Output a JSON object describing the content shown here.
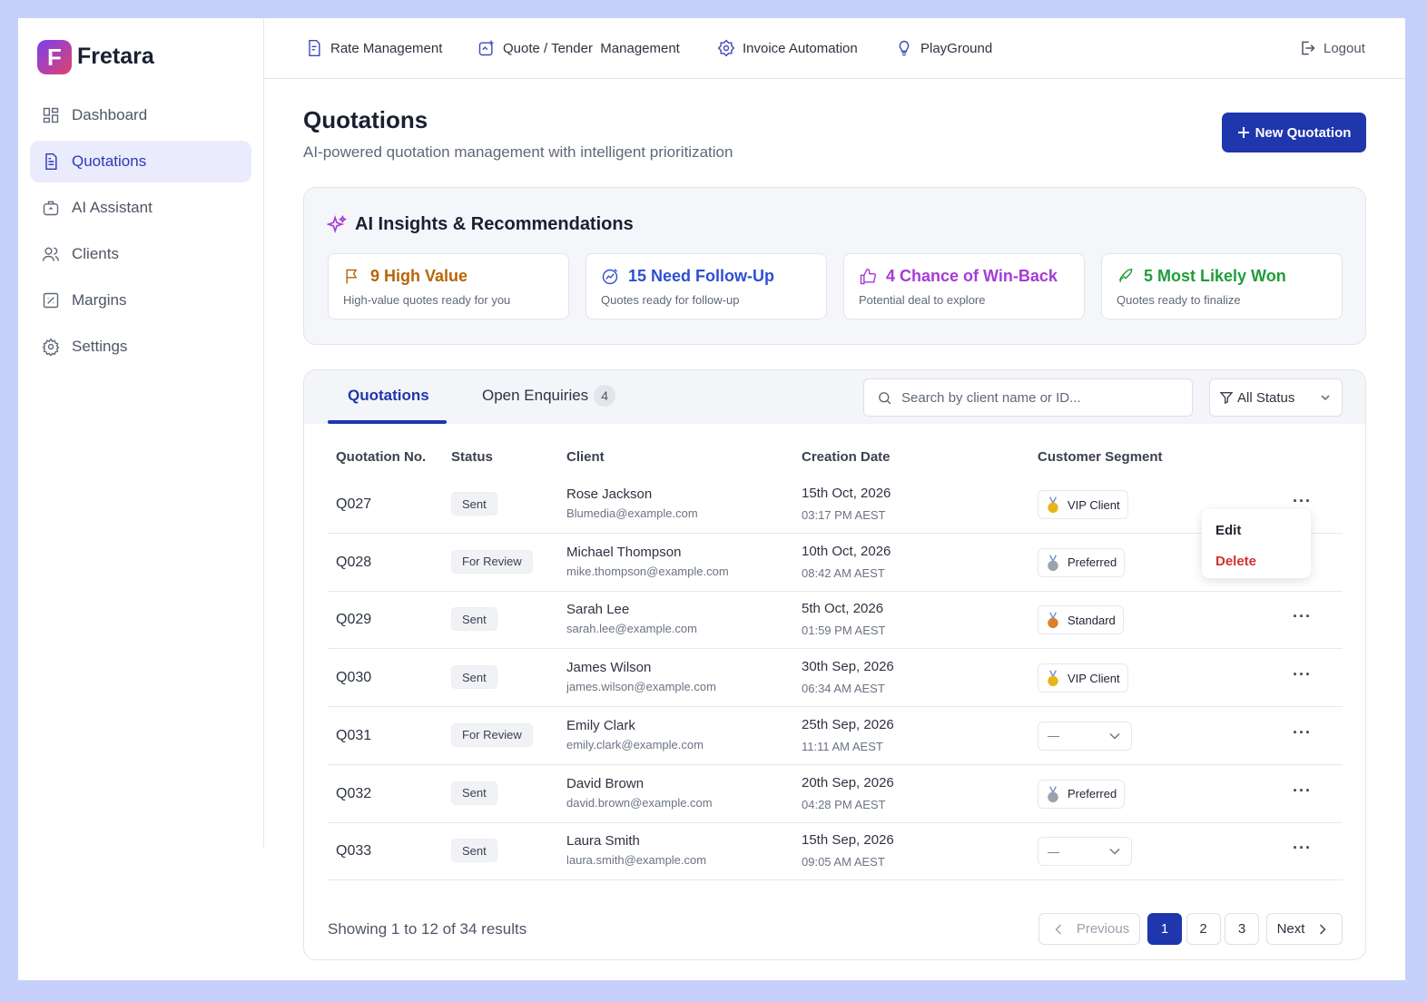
{
  "brand": "Fretara",
  "sidebar": {
    "items": [
      "Dashboard",
      "Quotations",
      "AI Assistant",
      "Clients",
      "Margins",
      "Settings"
    ],
    "active": 1
  },
  "topnav": {
    "items": [
      "Rate Management",
      "Quote / Tender  Management",
      "Invoice Automation",
      "PlayGround"
    ],
    "logout": "Logout"
  },
  "header": {
    "title": "Quotations",
    "subtitle": "AI-powered quotation management with intelligent prioritization",
    "new_button": "New Quotation"
  },
  "insights": {
    "title": "AI Insights & Recommendations",
    "cards": [
      {
        "title": "9 High Value",
        "text": "High-value quotes ready for you",
        "color": "#b8650a"
      },
      {
        "title": "15 Need Follow-Up",
        "text": "Quotes ready for follow-up",
        "color": "#2f4fd0"
      },
      {
        "title": "4 Chance of Win-Back",
        "text": "Potential deal to explore",
        "color": "#a63ad6"
      },
      {
        "title": "5 Most Likely Won",
        "text": "Quotes ready to finalize",
        "color": "#1f9d3a"
      }
    ]
  },
  "tabs": [
    {
      "label": "Quotations"
    },
    {
      "label": "Open Enquiries",
      "count": 4
    }
  ],
  "search_placeholder": "Search by client name or ID...",
  "status_filter": "All Status",
  "table": {
    "columns": [
      "Quotation No.",
      "Status",
      "Client",
      "Creation Date",
      "Customer Segment"
    ],
    "rows": [
      {
        "id": "Q027",
        "status": "Sent",
        "client": "Rose Jackson",
        "email": "Blumedia@example.com",
        "date": "15th Oct, 2026",
        "time": "03:17 PM AEST",
        "segment": "VIP Client",
        "medal": "#e9b51c"
      },
      {
        "id": "Q028",
        "status": "For Review",
        "client": "Michael Thompson",
        "email": "mike.thompson@example.com",
        "date": "10th Oct, 2026",
        "time": "08:42 AM AEST",
        "segment": "Preferred",
        "medal": "#9aa3ad"
      },
      {
        "id": "Q029",
        "status": "Sent",
        "client": "Sarah Lee",
        "email": "sarah.lee@example.com",
        "date": "5th Oct, 2026",
        "time": "01:59 PM AEST",
        "segment": "Standard",
        "medal": "#d9822b"
      },
      {
        "id": "Q030",
        "status": "Sent",
        "client": "James Wilson",
        "email": "james.wilson@example.com",
        "date": "30th Sep, 2026",
        "time": "06:34 AM AEST",
        "segment": "VIP Client",
        "medal": "#e9b51c"
      },
      {
        "id": "Q031",
        "status": "For Review",
        "client": "Emily Clark",
        "email": "emily.clark@example.com",
        "date": "25th Sep, 2026",
        "time": "11:11 AM AEST",
        "segment": "—",
        "medal": null
      },
      {
        "id": "Q032",
        "status": "Sent",
        "client": "David Brown",
        "email": "david.brown@example.com",
        "date": "20th Sep, 2026",
        "time": "04:28 PM AEST",
        "segment": "Preferred",
        "medal": "#9aa3ad"
      },
      {
        "id": "Q033",
        "status": "Sent",
        "client": "Laura Smith",
        "email": "laura.smith@example.com",
        "date": "15th Sep, 2026",
        "time": "09:05 AM AEST",
        "segment": "—",
        "medal": null
      }
    ]
  },
  "row_menu": {
    "row": 0,
    "items": [
      "Edit",
      "Delete"
    ]
  },
  "pagination": {
    "summary": "Showing 1 to 12 of 34 results",
    "previous": "Previous",
    "pages": [
      1,
      2,
      3
    ],
    "current": 0,
    "next": "Next"
  }
}
